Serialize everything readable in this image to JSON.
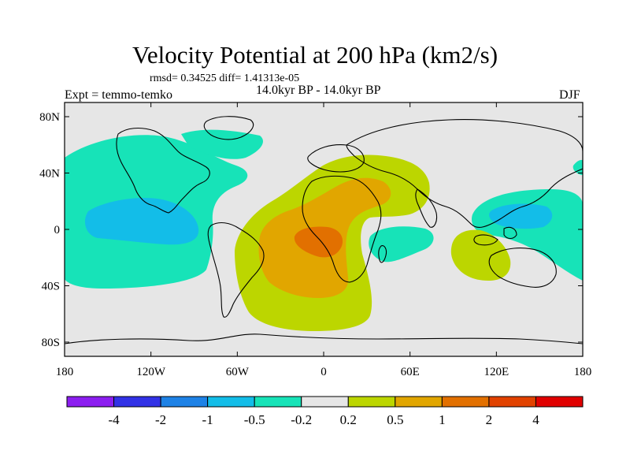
{
  "title": "Velocity Potential at 200 hPa (km2/s)",
  "stats": "rmsd= 0.34525 diff= 1.41313e-05",
  "period": "14.0kyr BP - 14.0kyr BP",
  "expt_label": "Expt = temmo-temko",
  "season": "DJF",
  "colors": {
    "background": "#e6e6e6",
    "pos_02_05": "#bcd600",
    "pos_05_1": "#e1a600",
    "pos_1_2": "#e27000",
    "neg_02_05": "#17e3b8",
    "neg_05_1": "#13bde8"
  },
  "map": {
    "lon_ticks": [
      "180",
      "120W",
      "60W",
      "0",
      "60E",
      "120E",
      "180"
    ],
    "lat_ticks": [
      "80N",
      "40N",
      "0",
      "40S",
      "80S"
    ]
  },
  "colorbar": {
    "colors": [
      "#8c1ef0",
      "#3232e6",
      "#1e82e6",
      "#13bde8",
      "#17e3b8",
      "#e6e6e6",
      "#bcd600",
      "#e1a600",
      "#e27000",
      "#e14200",
      "#e00000"
    ],
    "labels": [
      "-4",
      "-2",
      "-1",
      "-0.5",
      "-0.2",
      "0.2",
      "0.5",
      "1",
      "2",
      "4"
    ]
  }
}
